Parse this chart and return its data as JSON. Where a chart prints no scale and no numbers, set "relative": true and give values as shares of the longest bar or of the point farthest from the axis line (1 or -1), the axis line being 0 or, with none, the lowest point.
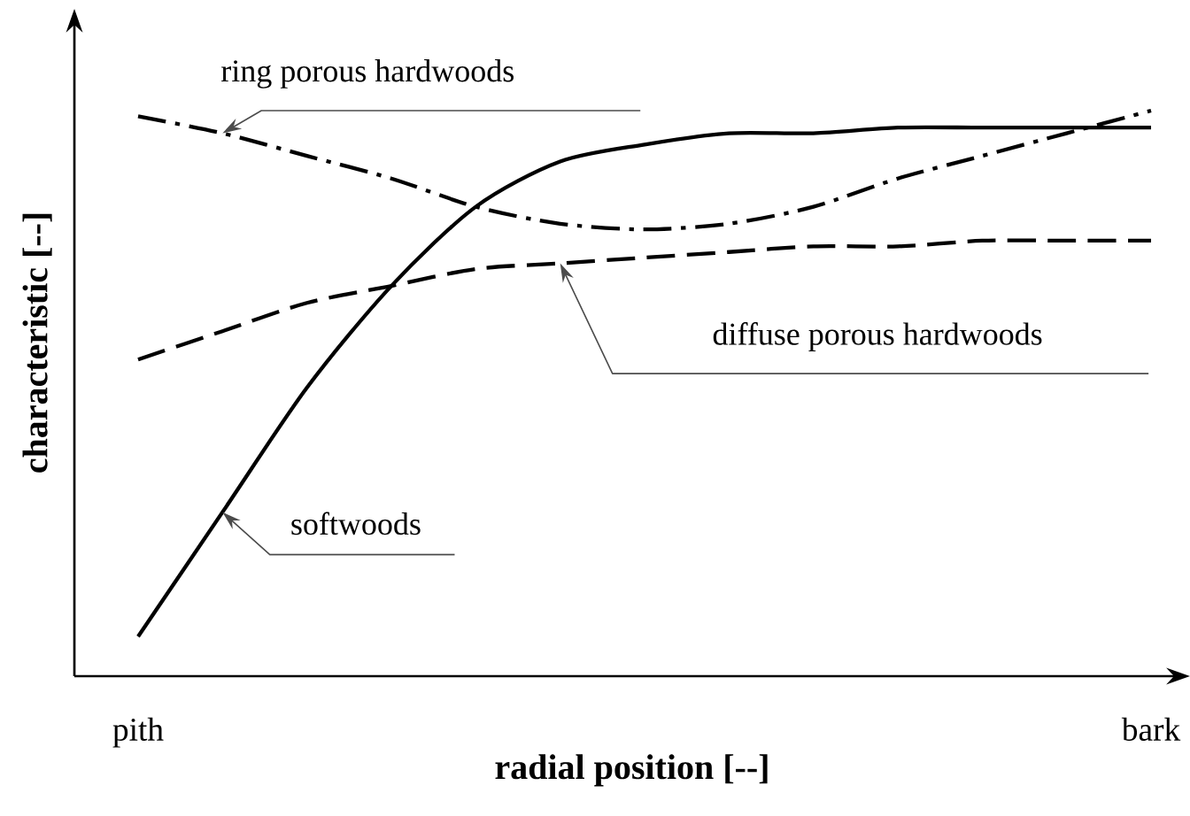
{
  "chart_data": {
    "type": "line",
    "xlabel": "radial position [--]",
    "ylabel": "characteristic [--]",
    "relative": true,
    "categories": [
      "pith",
      null,
      null,
      null,
      null,
      null,
      null,
      null,
      null,
      null,
      null,
      null,
      "bark"
    ],
    "series": [
      {
        "name": "ring porous hardwoods",
        "color": "#000000",
        "line_style": "dashdot",
        "values": [
          0.99,
          0.96,
          0.92,
          0.88,
          0.83,
          0.8,
          0.79,
          0.8,
          0.83,
          0.88,
          0.92,
          0.96,
          1.0
        ]
      },
      {
        "name": "diffuse porous hardwoods",
        "color": "#000000",
        "line_style": "dashed",
        "values": [
          0.56,
          0.61,
          0.66,
          0.69,
          0.72,
          0.73,
          0.74,
          0.75,
          0.76,
          0.76,
          0.77,
          0.77,
          0.77
        ]
      },
      {
        "name": "softwoods",
        "color": "#000000",
        "line_style": "solid",
        "values": [
          0.07,
          0.29,
          0.51,
          0.69,
          0.83,
          0.91,
          0.94,
          0.96,
          0.96,
          0.97,
          0.97,
          0.97,
          0.97
        ]
      }
    ]
  }
}
